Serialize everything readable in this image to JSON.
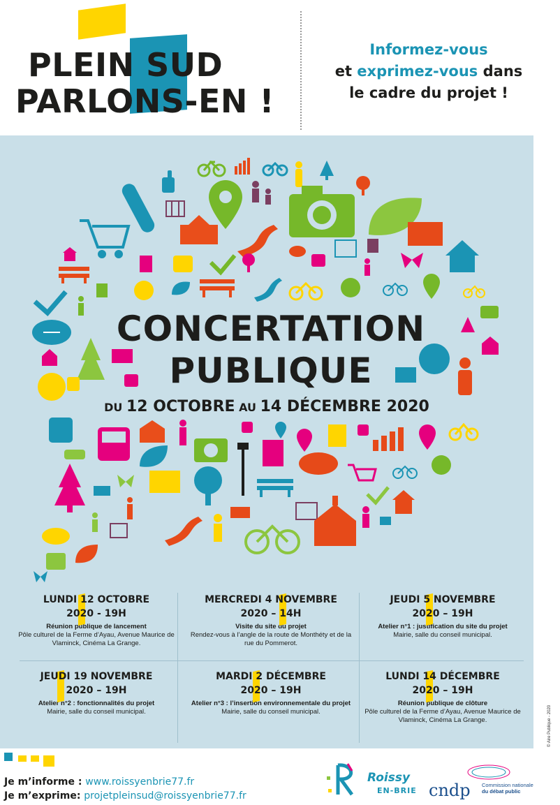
{
  "header": {
    "title_line1": "PLEIN SUD",
    "title_line2": "PARLONS-EN !",
    "tagline_1": "Informez-vous",
    "tagline_2_a": "et ",
    "tagline_2_b": "exprimez-vous",
    "tagline_2_c": " dans",
    "tagline_3": "le cadre du projet !"
  },
  "headline": {
    "line1": "CONCERTATION",
    "line2": "PUBLIQUE",
    "dates_du": "DU ",
    "dates_from": "12 OCTOBRE",
    "dates_au": " AU ",
    "dates_to": "14 DÉCEMBRE 2020"
  },
  "events": [
    {
      "name": "LUNDI 12 OCTOBRE",
      "time": "2020 - 19H",
      "kind": "Réunion publique de lancement",
      "place": "Pôle culturel de la Ferme d’Ayau, Avenue Maurice de Vlaminck, Cinéma La Grange."
    },
    {
      "name": "MERCREDI 4 NOVEMBRE",
      "time": "2020 – 14H",
      "kind": "Visite du site du projet",
      "place": "Rendez-vous à l’angle de la route de Monthéty et de la rue du Pommerot."
    },
    {
      "name": "JEUDI 5 NOVEMBRE",
      "time": "2020 – 19H",
      "kind": "Atelier n°1 : justification du site du projet",
      "place": "Mairie, salle du conseil municipal."
    },
    {
      "name": "JEUDI 19 NOVEMBRE",
      "time": "2020 – 19H",
      "kind": "Atelier n°2 : fonctionnalités du projet",
      "place": "Mairie, salle du conseil municipal."
    },
    {
      "name": "MARDI 2 DÉCEMBRE",
      "time": "2020 – 19H",
      "kind": "Atelier n°3 : l’insertion environnementale du projet",
      "place": "Mairie, salle du conseil municipal."
    },
    {
      "name": "LUNDI 14 DÉCEMBRE",
      "time": "2020 – 19H",
      "kind": "Réunion publique de clôture",
      "place": "Pôle culturel de la Ferme d’Ayau, Avenue Maurice de Vlaminck, Cinéma La Grange."
    }
  ],
  "credit": "© Aire Publique - 2020",
  "footer": {
    "inform_label": "Je m’informe : ",
    "inform_link": "www.roissyenbrie77.fr",
    "express_label": "Je m’exprime: ",
    "express_link": "projetpleinsud@roissyenbrie77.fr",
    "roissy_1": "Roissy",
    "roissy_2": "EN-BRIE",
    "cndp": "cndp",
    "cndp_sub_1": "Commission nationale",
    "cndp_sub_2": "du débat public"
  },
  "colors": {
    "yellow": "#ffd500",
    "blue": "#1b94b4",
    "panel": "#c9dfe8",
    "navy": "#1b4f8c"
  },
  "cloud_icons": [
    "bicycle-icon",
    "chart-icon",
    "person-icon",
    "tree-icon",
    "thumbs-up-icon",
    "skateboard-icon",
    "map-icon",
    "location-pin-icon",
    "camera-icon",
    "leaf-icon",
    "shopping-cart-icon",
    "school-icon",
    "river-icon",
    "chat-bubble-icon",
    "house-icon",
    "bench-icon",
    "bus-icon",
    "checkmark-icon",
    "butterfly-icon",
    "document-icon",
    "recycle-icon",
    "football-icon",
    "church-icon",
    "lamppost-icon",
    "car-icon",
    "factory-icon"
  ]
}
